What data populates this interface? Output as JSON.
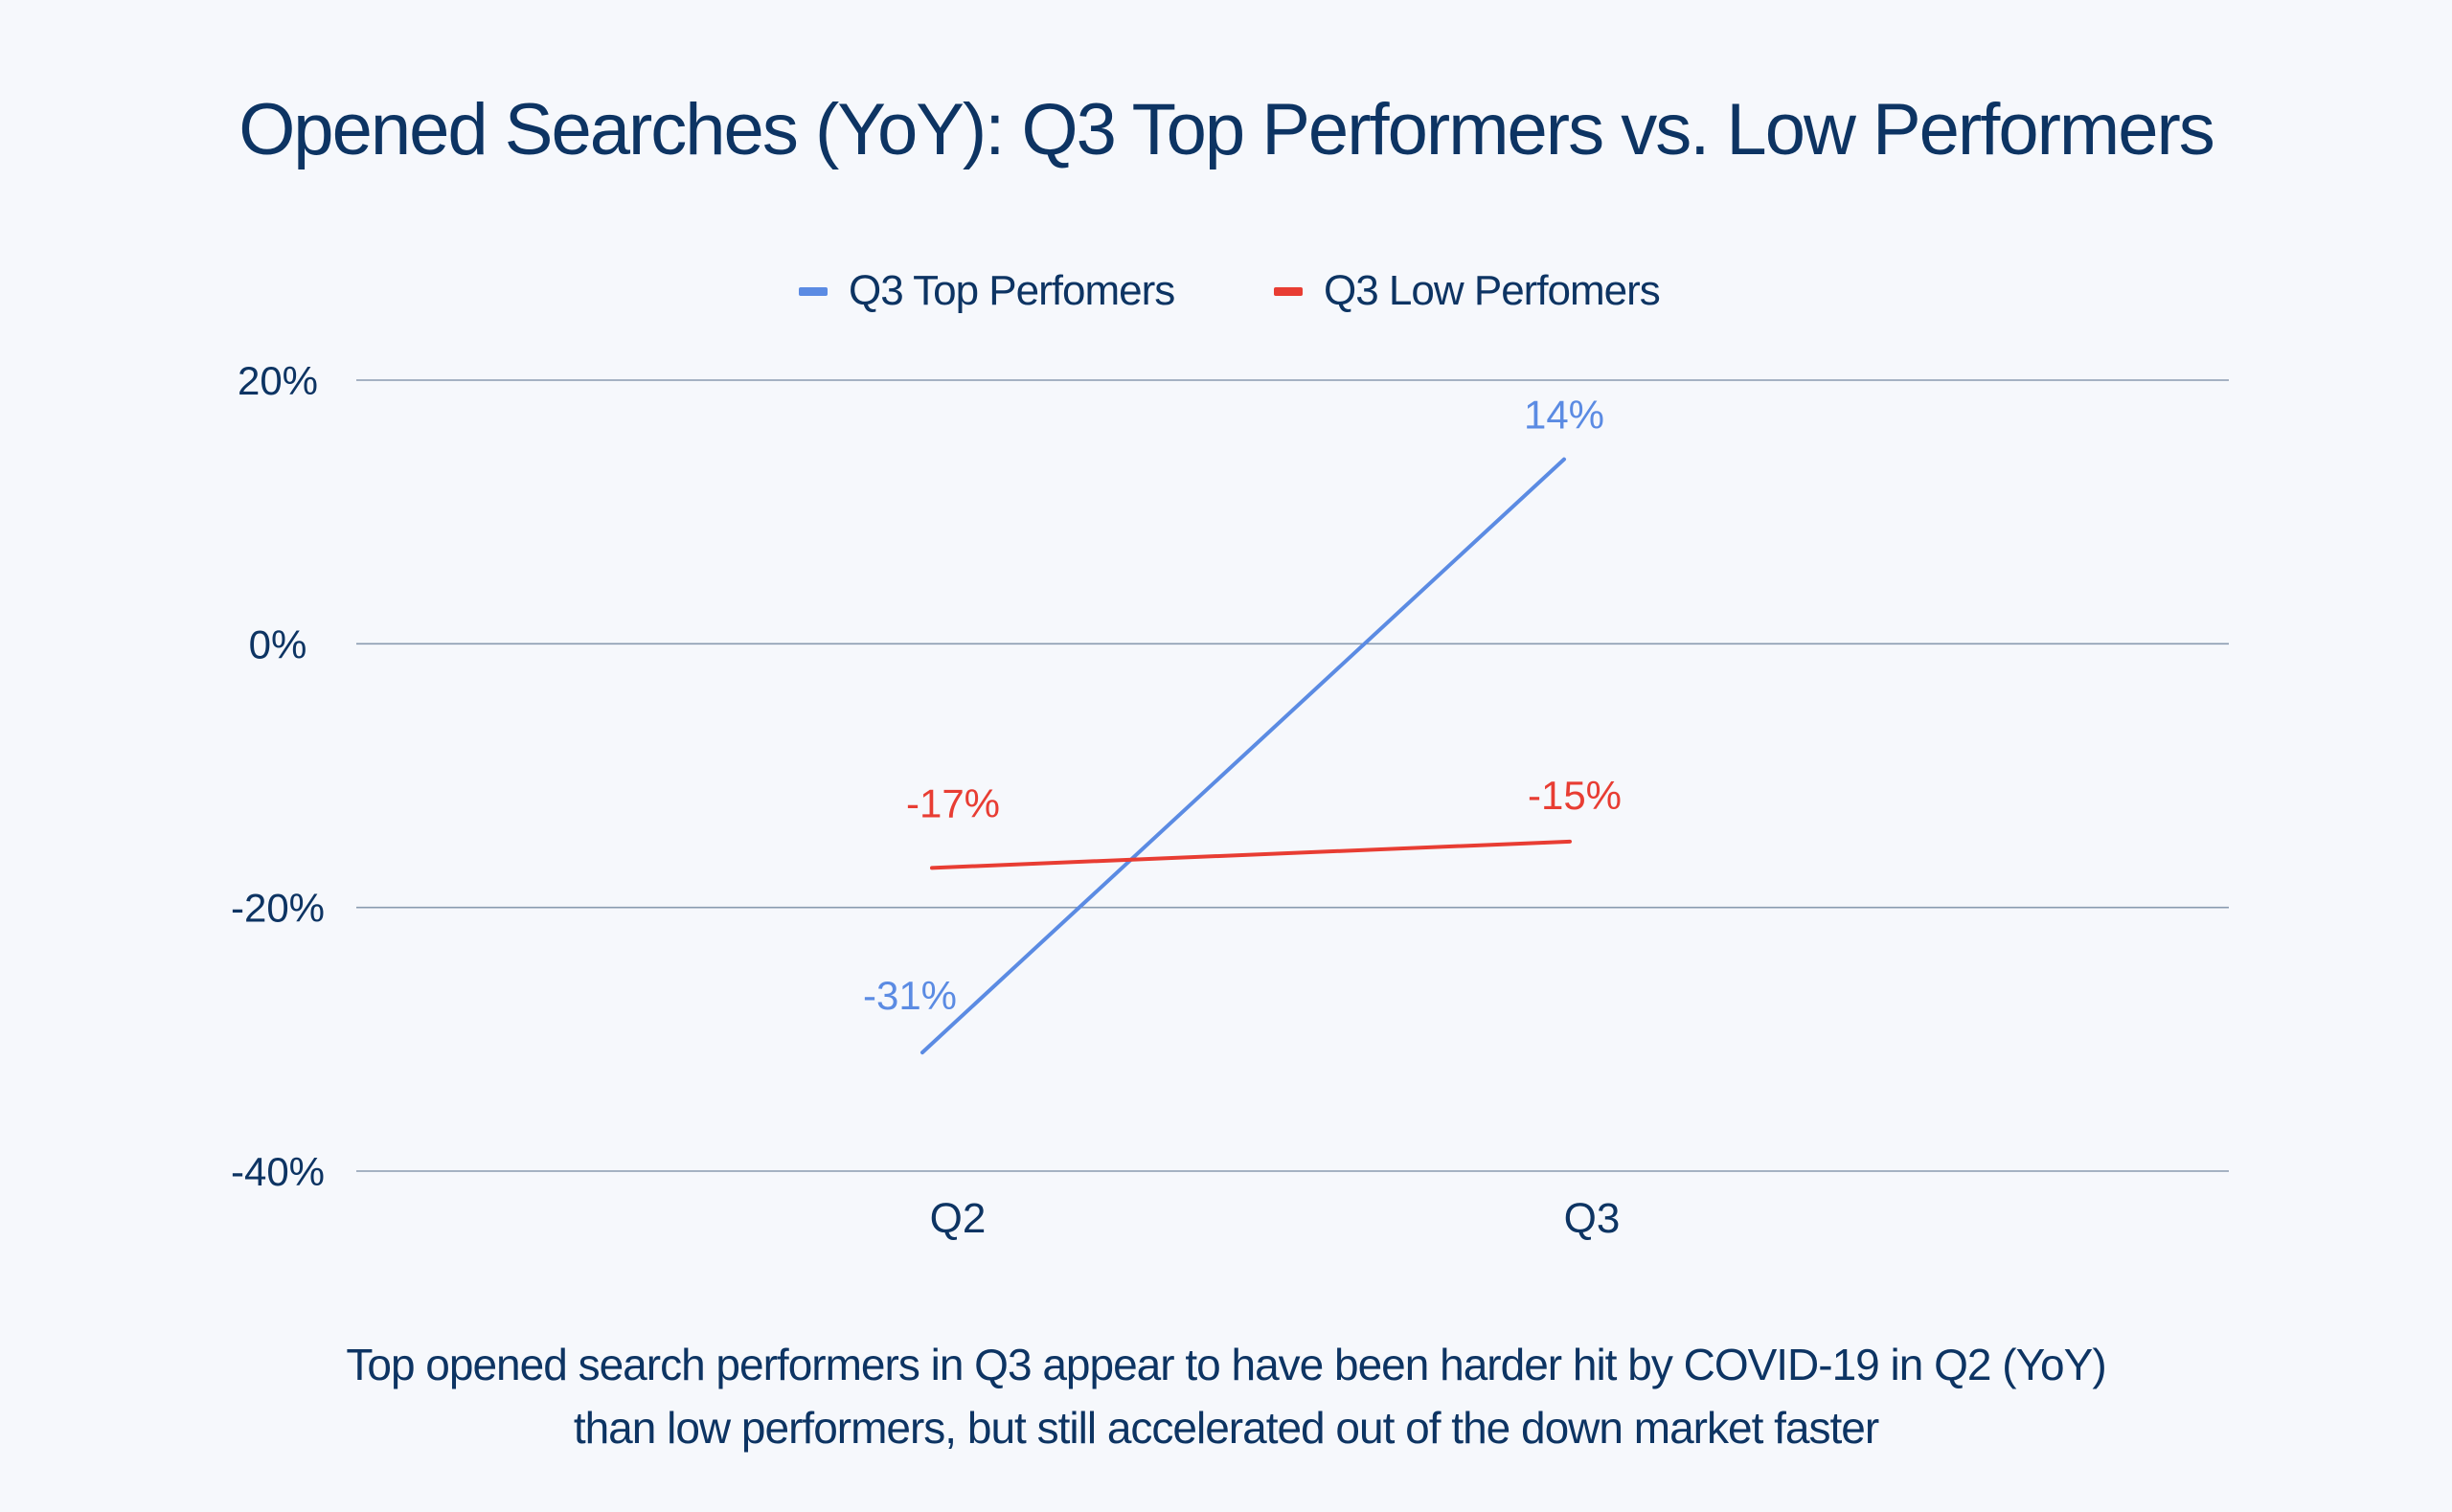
{
  "chart_data": {
    "type": "line",
    "title": "Opened Searches (YoY): Q3 Top Performers vs. Low Performers",
    "categories": [
      "Q2",
      "Q3"
    ],
    "series": [
      {
        "name": "Q3 Top Perfomers",
        "color": "#5b8be3",
        "values": [
          -31,
          14
        ],
        "labels": [
          "-31%",
          "14%"
        ]
      },
      {
        "name": "Q3 Low Perfomers",
        "color": "#e83d33",
        "values": [
          -17,
          -15
        ],
        "labels": [
          "-17%",
          "-15%"
        ]
      }
    ],
    "ylim": [
      -40,
      20
    ],
    "yticks": [
      20,
      0,
      -20,
      -40
    ],
    "ytick_labels": [
      "20%",
      "0%",
      "-20%",
      "-40%"
    ],
    "grid": true,
    "legend": "top-center",
    "xlabel": "",
    "ylabel": ""
  },
  "caption": {
    "line1": "Top opened search performers in Q3 appear to have been harder hit by COVID-19 in Q2 (YoY)",
    "line2": "than low performers, but still accelerated out of the down market faster"
  }
}
